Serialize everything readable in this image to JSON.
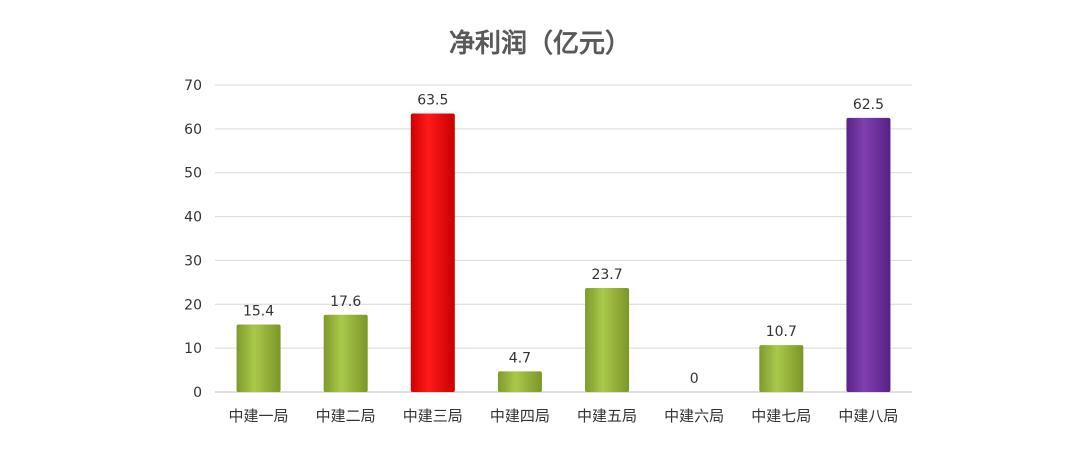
{
  "chart_data": {
    "type": "bar",
    "title": "净利润（亿元）",
    "categories": [
      "中建一局",
      "中建二局",
      "中建三局",
      "中建四局",
      "中建五局",
      "中建六局",
      "中建七局",
      "中建八局"
    ],
    "values": [
      15.4,
      17.6,
      63.5,
      4.7,
      23.7,
      0,
      10.7,
      62.5
    ],
    "value_labels": [
      "15.4",
      "17.6",
      "63.5",
      "4.7",
      "23.7",
      "0",
      "10.7",
      "62.5"
    ],
    "bar_colors": [
      "#9bbb3c",
      "#9bbb3c",
      "#ff0000",
      "#9bbb3c",
      "#9bbb3c",
      "#9bbb3c",
      "#9bbb3c",
      "#7030a0"
    ],
    "ylim": [
      0,
      70
    ],
    "yticks": [
      0,
      10,
      20,
      30,
      40,
      50,
      60,
      70
    ],
    "grid": true,
    "legend": "none",
    "xlabel": "",
    "ylabel": ""
  }
}
